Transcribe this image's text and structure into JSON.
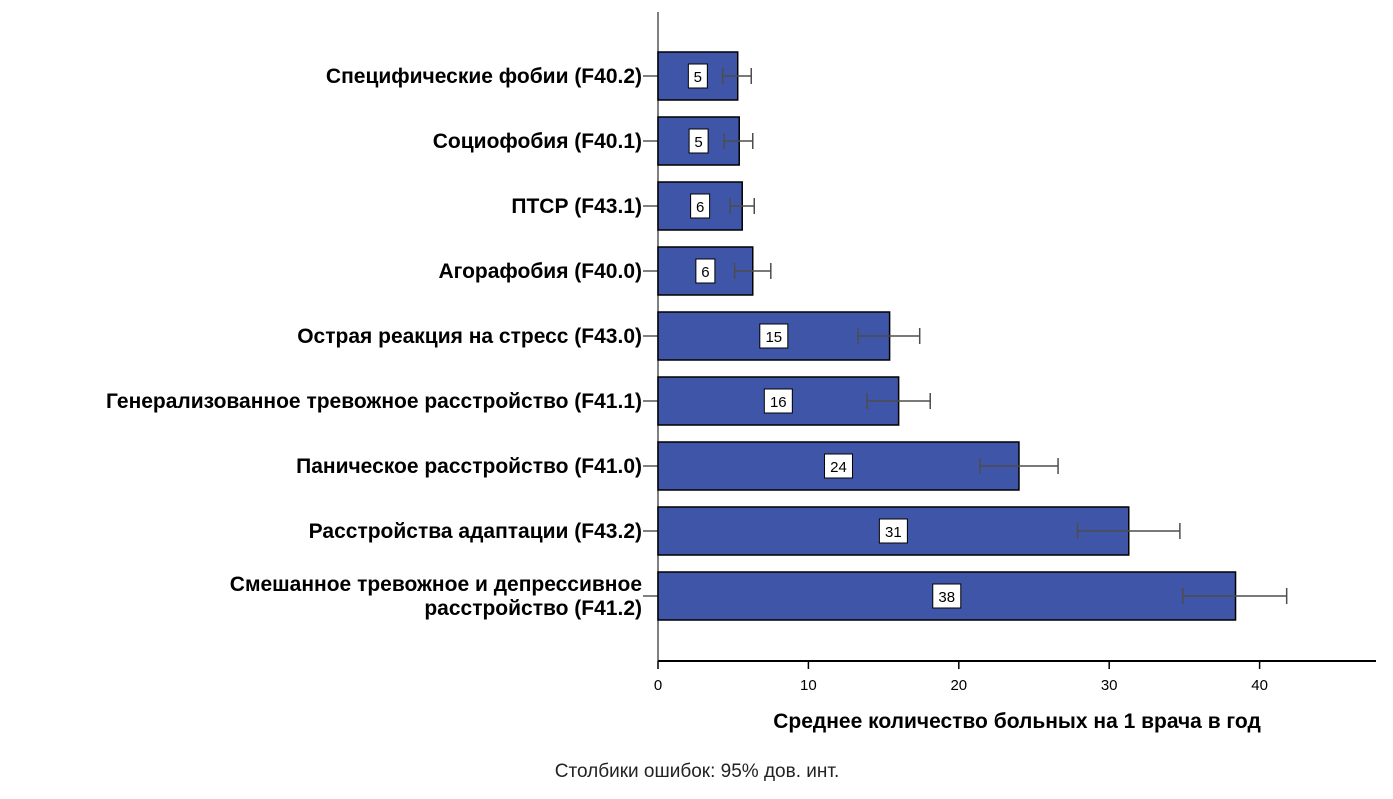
{
  "chart_data": {
    "type": "bar",
    "orientation": "horizontal",
    "categories": [
      [
        "Специфические фобии (F40.2)"
      ],
      [
        "Социофобия (F40.1)"
      ],
      [
        "ПТСР (F43.1)"
      ],
      [
        "Агорафобия (F40.0)"
      ],
      [
        "Острая реакция на стресс (F43.0)"
      ],
      [
        "Генерализованное тревожное расстройство (F41.1)"
      ],
      [
        "Паническое расстройство (F41.0)"
      ],
      [
        "Расстройства адаптации (F43.2)"
      ],
      [
        "Смешанное тревожное и депрессивное",
        "расстройство (F41.2)"
      ]
    ],
    "values": [
      5.3,
      5.4,
      5.6,
      6.3,
      15.4,
      16.0,
      24.0,
      31.3,
      38.4
    ],
    "data_labels": [
      "5",
      "5",
      "6",
      "6",
      "15",
      "16",
      "24",
      "31",
      "38"
    ],
    "error_low": [
      4.3,
      4.4,
      4.8,
      5.1,
      13.3,
      13.9,
      21.4,
      27.9,
      34.9
    ],
    "error_high": [
      6.2,
      6.3,
      6.4,
      7.5,
      17.4,
      18.1,
      26.6,
      34.7,
      41.8
    ],
    "x_ticks": [
      0,
      10,
      20,
      30,
      40
    ],
    "xlim": [
      0,
      47.5
    ],
    "xlabel": "Среднее количество больных на 1 врача в год",
    "footnote": "Столбики ошибок: 95% дов. инт.",
    "grid": false,
    "legend": "none",
    "bar_color": "#3f55a8",
    "bar_edge_color": "#000000",
    "error_bar_color": "#4d4d4d"
  }
}
